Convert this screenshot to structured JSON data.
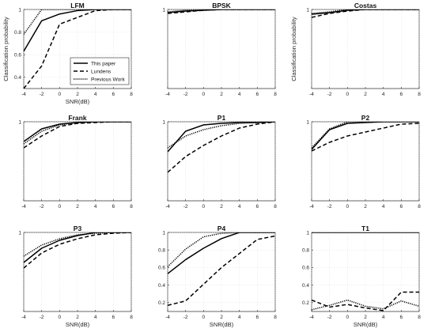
{
  "chart_data": [
    {
      "type": "line",
      "title": "LFM",
      "xlabel": "SNR(dB)",
      "ylabel": "Classification probability",
      "x": [
        -4,
        -2,
        0,
        2,
        4,
        6,
        8
      ],
      "xlim": [
        -4,
        8
      ],
      "ylim": [
        0.3,
        1.0
      ],
      "xticks": [
        -4,
        -2,
        0,
        2,
        4,
        6,
        8
      ],
      "yticks": [
        0.4,
        0.6,
        0.8,
        1.0
      ],
      "grid": true,
      "legend": {
        "placement": "lower-right",
        "entries": [
          "This paper",
          "Lundens",
          "Previous Work"
        ]
      },
      "series": [
        {
          "name": "This paper",
          "style": "solid",
          "values": [
            0.63,
            0.9,
            0.96,
            0.99,
            1.0,
            1.0,
            1.0
          ]
        },
        {
          "name": "Lundens",
          "style": "dashed",
          "values": [
            0.3,
            0.5,
            0.87,
            0.93,
            0.99,
            1.0,
            1.0
          ]
        },
        {
          "name": "Previous Work",
          "style": "dotted",
          "values": [
            0.78,
            1.0,
            1.0,
            1.0,
            1.0,
            1.0,
            1.0
          ]
        }
      ]
    },
    {
      "type": "line",
      "title": "BPSK",
      "xlabel": "",
      "ylabel": "",
      "x": [
        -4,
        -2,
        0,
        2,
        4,
        6,
        8
      ],
      "xlim": [
        -4,
        8
      ],
      "ylim": [
        0,
        1.0
      ],
      "xticks": [
        -4,
        -2,
        0,
        2,
        4,
        6,
        8
      ],
      "yticks": [
        1.0
      ],
      "grid": true,
      "series": [
        {
          "name": "This paper",
          "style": "solid",
          "values": [
            0.96,
            0.98,
            0.99,
            1.0,
            1.0,
            1.0,
            1.0
          ]
        },
        {
          "name": "Lundens",
          "style": "dashed",
          "values": [
            0.95,
            0.97,
            0.99,
            1.0,
            1.0,
            1.0,
            1.0
          ]
        },
        {
          "name": "Previous Work",
          "style": "dotted",
          "values": [
            0.97,
            0.99,
            1.0,
            1.0,
            1.0,
            1.0,
            1.0
          ]
        }
      ]
    },
    {
      "type": "line",
      "title": "Costas",
      "xlabel": "",
      "ylabel": "Classification probability",
      "x": [
        -4,
        -2,
        0,
        2,
        4,
        6,
        8
      ],
      "xlim": [
        -4,
        8
      ],
      "ylim": [
        0,
        1.0
      ],
      "xticks": [
        -4,
        -2,
        0,
        2,
        4,
        6,
        8
      ],
      "yticks": [
        1.0
      ],
      "grid": true,
      "series": [
        {
          "name": "This paper",
          "style": "solid",
          "values": [
            0.94,
            0.96,
            0.99,
            1.0,
            1.0,
            1.0,
            1.0
          ]
        },
        {
          "name": "Lundens",
          "style": "dashed",
          "values": [
            0.9,
            0.95,
            0.98,
            1.0,
            1.0,
            1.0,
            1.0
          ]
        },
        {
          "name": "Previous Work",
          "style": "dotted",
          "values": [
            0.95,
            0.97,
            1.0,
            1.0,
            1.0,
            1.0,
            1.0
          ]
        }
      ]
    },
    {
      "type": "line",
      "title": "Frank",
      "xlabel": "",
      "ylabel": "",
      "x": [
        -4,
        -2,
        0,
        2,
        4,
        6,
        8
      ],
      "xlim": [
        -4,
        8
      ],
      "ylim": [
        0,
        1.0
      ],
      "xticks": [
        -4,
        -2,
        0,
        2,
        4,
        6,
        8
      ],
      "yticks": [
        1.0
      ],
      "grid": true,
      "series": [
        {
          "name": "This paper",
          "style": "solid",
          "values": [
            0.75,
            0.91,
            0.97,
            0.99,
            1.0,
            1.0,
            1.0
          ]
        },
        {
          "name": "Lundens",
          "style": "dashed",
          "values": [
            0.67,
            0.82,
            0.94,
            0.98,
            0.99,
            1.0,
            1.0
          ]
        },
        {
          "name": "Previous Work",
          "style": "dotted",
          "values": [
            0.72,
            0.88,
            0.96,
            0.99,
            1.0,
            1.0,
            1.0
          ]
        }
      ]
    },
    {
      "type": "line",
      "title": "P1",
      "xlabel": "",
      "ylabel": "",
      "x": [
        -4,
        -2,
        0,
        2,
        4,
        6,
        8
      ],
      "xlim": [
        -4,
        8
      ],
      "ylim": [
        0,
        1.0
      ],
      "xticks": [
        -4,
        -2,
        0,
        2,
        4,
        6,
        8
      ],
      "yticks": [
        1.0
      ],
      "grid": true,
      "series": [
        {
          "name": "This paper",
          "style": "solid",
          "values": [
            0.62,
            0.88,
            0.96,
            0.98,
            0.99,
            0.99,
            1.0
          ]
        },
        {
          "name": "Lundens",
          "style": "dashed",
          "values": [
            0.36,
            0.56,
            0.7,
            0.82,
            0.92,
            0.97,
            1.0
          ]
        },
        {
          "name": "Previous Work",
          "style": "dotted",
          "values": [
            0.67,
            0.82,
            0.9,
            0.95,
            0.98,
            0.99,
            1.0
          ]
        }
      ]
    },
    {
      "type": "line",
      "title": "P2",
      "xlabel": "",
      "ylabel": "",
      "x": [
        -4,
        -2,
        0,
        2,
        4,
        6,
        8
      ],
      "xlim": [
        -4,
        8
      ],
      "ylim": [
        0,
        1.0
      ],
      "xticks": [
        -4,
        -2,
        0,
        2,
        4,
        6,
        8
      ],
      "yticks": [
        1.0
      ],
      "grid": true,
      "series": [
        {
          "name": "This paper",
          "style": "solid",
          "values": [
            0.65,
            0.9,
            0.98,
            0.99,
            1.0,
            1.0,
            1.0
          ]
        },
        {
          "name": "Lundens",
          "style": "dashed",
          "values": [
            0.63,
            0.74,
            0.82,
            0.87,
            0.92,
            0.97,
            0.98
          ]
        },
        {
          "name": "Previous Work",
          "style": "dotted",
          "values": [
            0.67,
            0.91,
            1.0,
            1.0,
            1.0,
            1.0,
            1.0
          ]
        }
      ]
    },
    {
      "type": "line",
      "title": "P3",
      "xlabel": "SNR(dB)",
      "ylabel": "",
      "x": [
        -4,
        -2,
        0,
        2,
        4,
        6,
        8
      ],
      "xlim": [
        -4,
        8
      ],
      "ylim": [
        0,
        1.0
      ],
      "xticks": [
        -4,
        -2,
        0,
        2,
        4,
        6,
        8
      ],
      "yticks": [
        1.0
      ],
      "grid": true,
      "series": [
        {
          "name": "This paper",
          "style": "solid",
          "values": [
            0.62,
            0.8,
            0.9,
            0.96,
            1.0,
            1.0,
            1.0
          ]
        },
        {
          "name": "Lundens",
          "style": "dashed",
          "values": [
            0.55,
            0.74,
            0.85,
            0.92,
            0.97,
            0.99,
            1.0
          ]
        },
        {
          "name": "Previous Work",
          "style": "dotted",
          "values": [
            0.7,
            0.84,
            0.92,
            0.97,
            0.99,
            1.0,
            1.0
          ]
        }
      ]
    },
    {
      "type": "line",
      "title": "P4",
      "xlabel": "SNR(dB)",
      "ylabel": "",
      "x": [
        -4,
        -2,
        0,
        2,
        4,
        6,
        8
      ],
      "xlim": [
        -4,
        8
      ],
      "ylim": [
        0.1,
        1.0
      ],
      "xticks": [
        -4,
        -2,
        0,
        2,
        4,
        6,
        8
      ],
      "yticks": [
        0.2,
        0.4,
        0.6,
        0.8,
        1.0
      ],
      "grid": true,
      "series": [
        {
          "name": "This paper",
          "style": "solid",
          "values": [
            0.53,
            0.69,
            0.82,
            0.93,
            1.0,
            1.0,
            1.0
          ]
        },
        {
          "name": "Lundens",
          "style": "dashed",
          "values": [
            0.17,
            0.22,
            0.41,
            0.6,
            0.76,
            0.92,
            0.96
          ]
        },
        {
          "name": "Previous Work",
          "style": "dotted",
          "values": [
            0.61,
            0.81,
            0.95,
            0.99,
            1.0,
            1.0,
            1.0
          ]
        }
      ]
    },
    {
      "type": "line",
      "title": "T1",
      "xlabel": "SNR(dB)",
      "ylabel": "",
      "x": [
        -4,
        -2,
        0,
        2,
        4,
        6,
        8
      ],
      "xlim": [
        -4,
        8
      ],
      "ylim": [
        0.1,
        1.0
      ],
      "xticks": [
        -4,
        -2,
        0,
        2,
        4,
        6,
        8
      ],
      "yticks": [
        0.2,
        0.4,
        0.6,
        0.8,
        1.0
      ],
      "grid": true,
      "series": [
        {
          "name": "This paper",
          "style": "solid",
          "values": [
            1.0,
            1.0,
            1.0,
            1.0,
            1.0,
            1.0,
            1.0
          ]
        },
        {
          "name": "Lundens",
          "style": "dashed",
          "values": [
            0.23,
            0.15,
            0.18,
            0.14,
            0.11,
            0.32,
            0.32
          ]
        },
        {
          "name": "Previous Work",
          "style": "dotted",
          "values": [
            0.12,
            0.17,
            0.23,
            0.16,
            0.13,
            0.22,
            0.16
          ]
        }
      ]
    }
  ]
}
